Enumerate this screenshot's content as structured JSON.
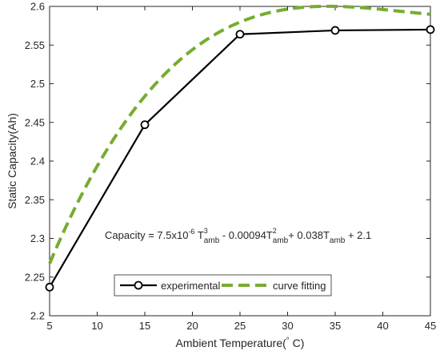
{
  "chart_data": {
    "type": "line",
    "title": "",
    "xlabel": "Ambient Temperature(",
    "xlabel_degree": "°",
    "xlabel_unit": " C)",
    "ylabel": "Static Capacity(Ah)",
    "xlim": [
      5,
      45
    ],
    "ylim": [
      2.2,
      2.6
    ],
    "x_ticks": [
      5,
      10,
      15,
      20,
      25,
      30,
      35,
      40,
      45
    ],
    "y_ticks": [
      2.2,
      2.25,
      2.3,
      2.35,
      2.4,
      2.45,
      2.5,
      2.55,
      2.6
    ],
    "x_tick_labels": [
      "5",
      "10",
      "15",
      "20",
      "25",
      "30",
      "35",
      "40",
      "45"
    ],
    "y_tick_labels": [
      "2.2",
      "2.25",
      "2.3",
      "2.35",
      "2.4",
      "2.45",
      "2.5",
      "2.55",
      "2.6"
    ],
    "grid": false,
    "legend_position": "bottom-center",
    "series": [
      {
        "name": "experimental",
        "style": "solid-with-circle-markers",
        "color": "#000000",
        "x": [
          5,
          15,
          25,
          35,
          45
        ],
        "y": [
          2.237,
          2.447,
          2.564,
          2.569,
          2.57
        ]
      },
      {
        "name": "curve fitting",
        "style": "dashed",
        "color": "#77AC30",
        "coefficients": {
          "a3": 7.5e-06,
          "a2": -0.00094,
          "a1": 0.038,
          "a0": 2.1
        }
      }
    ],
    "annotation": {
      "prefix": "Capacity = 7.5x10",
      "exp1": "-6",
      "t1": " T",
      "sup1": "3",
      "sub1": "amb",
      "t2": " - 0.00094T",
      "sup2": "2",
      "sub2": "amb",
      "t3": "+ 0.038T",
      "sub3": "amb",
      "t4": " + 2.1"
    }
  }
}
